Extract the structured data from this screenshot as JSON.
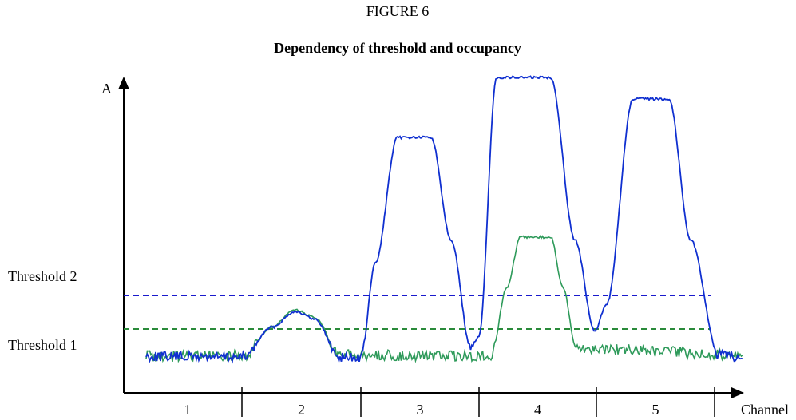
{
  "header": {
    "figure": "FIGURE 6",
    "title": "Dependency of threshold and occupancy"
  },
  "axes": {
    "y_label": "A",
    "x_label": "Channel"
  },
  "thresholds": [
    "Threshold 2",
    "Threshold 1"
  ],
  "channels": [
    "1",
    "2",
    "3",
    "4",
    "5"
  ]
}
